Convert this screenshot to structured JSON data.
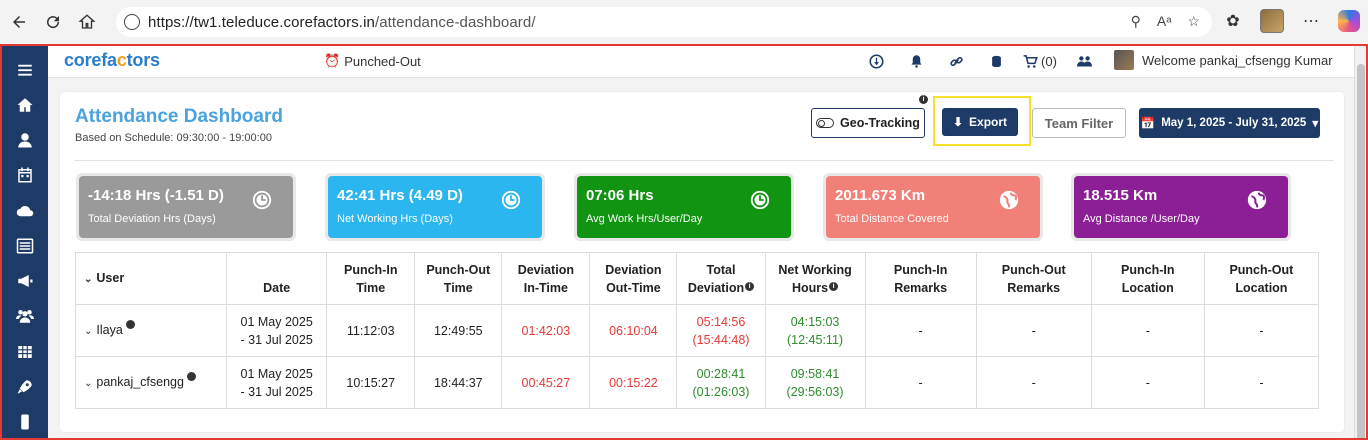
{
  "browser": {
    "url_host": "https://tw1.teleduce.corefactors.in",
    "url_path": "/attendance-dashboard/"
  },
  "header": {
    "logo_text_1": "corefa",
    "logo_text_o": "c",
    "logo_text_2": "tors",
    "punch_status": "Punched-Out",
    "cart_label": "(0)",
    "welcome": "Welcome pankaj_cfsengg Kumar"
  },
  "page": {
    "title": "Attendance Dashboard",
    "schedule": "Based on Schedule: 09:30:00 - 19:00:00"
  },
  "buttons": {
    "geo_tracking": "Geo-Tracking",
    "info_mark": "i",
    "export": "Export",
    "team_filter": "Team Filter",
    "date_range": "May 1, 2025 - July 31, 2025"
  },
  "tiles": [
    {
      "value": "-14:18 Hrs (-1.51 D)",
      "label": "Total Deviation Hrs (Days)",
      "color": "#9a9a9a",
      "icon": "clock-icon"
    },
    {
      "value": "42:41 Hrs (4.49 D)",
      "label": "Net Working Hrs (Days)",
      "color": "#2bb6f0",
      "icon": "clock-icon"
    },
    {
      "value": "07:06 Hrs",
      "label": "Avg Work Hrs/User/Day",
      "color": "#119411",
      "icon": "clock-icon"
    },
    {
      "value": "2011.673 Km",
      "label": "Total Distance Covered",
      "color": "#f08078",
      "icon": "globe-icon"
    },
    {
      "value": "18.515 Km",
      "label": "Avg Distance /User/Day",
      "color": "#8c1f95",
      "icon": "globe-icon"
    }
  ],
  "table": {
    "headers": {
      "user": "User",
      "date": "Date",
      "punch_in_time_1": "Punch-In",
      "punch_in_time_2": "Time",
      "punch_out_time_1": "Punch-Out",
      "punch_out_time_2": "Time",
      "dev_in_1": "Deviation",
      "dev_in_2": "In-Time",
      "dev_out_1": "Deviation",
      "dev_out_2": "Out-Time",
      "total_dev_1": "Total",
      "total_dev_2": "Deviation",
      "net_1": "Net Working",
      "net_2": "Hours",
      "in_remarks_1": "Punch-In",
      "in_remarks_2": "Remarks",
      "out_remarks_1": "Punch-Out",
      "out_remarks_2": "Remarks",
      "in_loc_1": "Punch-In",
      "in_loc_2": "Location",
      "out_loc_1": "Punch-Out",
      "out_loc_2": "Location"
    },
    "rows": [
      {
        "user": "Ilaya",
        "date_1": "01 May 2025",
        "date_2": "- 31 Jul 2025",
        "punch_in": "11:12:03",
        "punch_out": "12:49:55",
        "dev_in": "01:42:03",
        "dev_out": "06:10:04",
        "total_dev_1": "05:14:56",
        "total_dev_2": "(15:44:48)",
        "net_1": "04:15:03",
        "net_2": "(12:45:11)",
        "in_remarks": "-",
        "out_remarks": "-",
        "in_loc": "-",
        "out_loc": "-"
      },
      {
        "user": "pankaj_cfsengg",
        "date_1": "01 May 2025",
        "date_2": "- 31 Jul 2025",
        "punch_in": "10:15:27",
        "punch_out": "18:44:37",
        "dev_in": "00:45:27",
        "dev_out": "00:15:22",
        "total_dev_1": "00:28:41",
        "total_dev_2": "(01:26:03)",
        "net_1": "09:58:41",
        "net_2": "(29:56:03)",
        "in_remarks": "-",
        "out_remarks": "-",
        "in_loc": "-",
        "out_loc": "-"
      }
    ]
  }
}
